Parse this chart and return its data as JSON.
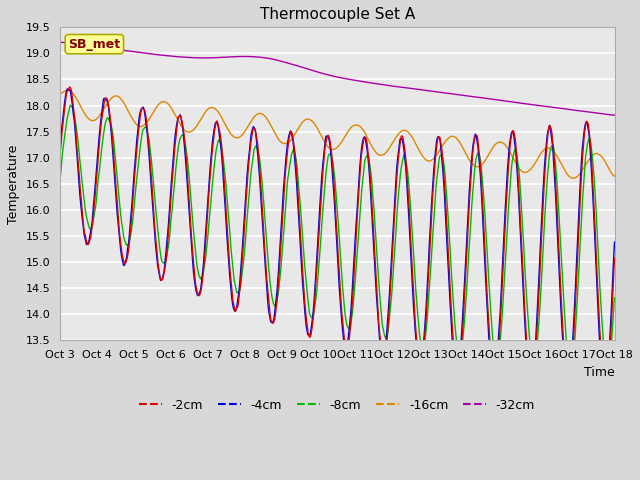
{
  "title": "Thermocouple Set A",
  "xlabel": "Time",
  "ylabel": "Temperature",
  "ylim": [
    13.5,
    19.5
  ],
  "tick_labels": [
    "Oct 3",
    "Oct 4",
    "Oct 5",
    "Oct 6",
    "Oct 7",
    "Oct 8",
    "Oct 9",
    "Oct 10",
    "Oct 11",
    "Oct 12",
    "Oct 13",
    "Oct 14",
    "Oct 15",
    "Oct 16",
    "Oct 17",
    "Oct 18"
  ],
  "legend_entries": [
    "-2cm",
    "-4cm",
    "-8cm",
    "-16cm",
    "-32cm"
  ],
  "colors": {
    "m2cm": "#dd0000",
    "m4cm": "#0000dd",
    "m8cm": "#00bb00",
    "m16cm": "#dd8800",
    "m32cm": "#aa00aa"
  },
  "annotation_label": "SB_met",
  "bg_color": "#d8d8d8",
  "plot_bg": "#e8e8e8",
  "title_fontsize": 11,
  "label_fontsize": 9,
  "tick_fontsize": 8,
  "legend_fontsize": 9,
  "linewidth": 1.0
}
